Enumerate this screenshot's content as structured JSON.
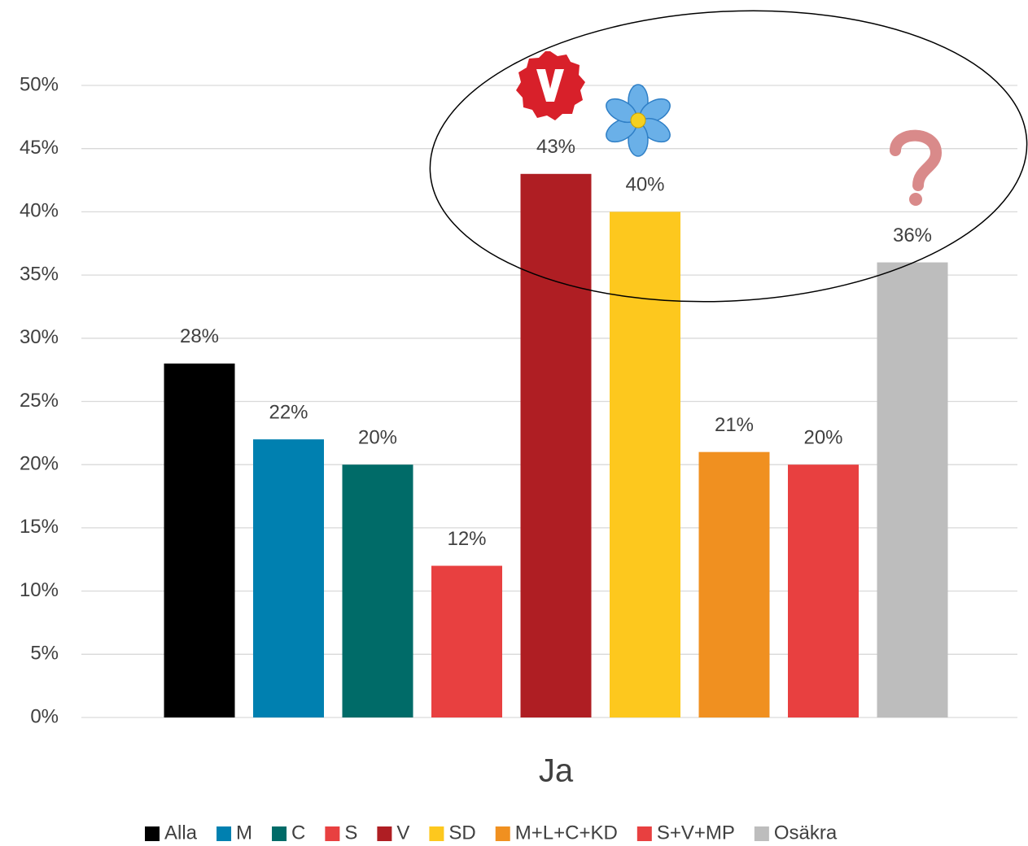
{
  "chart_data": {
    "type": "bar",
    "categories": [
      "Ja"
    ],
    "series": [
      {
        "name": "Alla",
        "color": "#000000",
        "values": [
          28
        ],
        "value_labels": [
          "28%"
        ]
      },
      {
        "name": "M",
        "color": "#0080b0",
        "values": [
          22
        ],
        "value_labels": [
          "22%"
        ]
      },
      {
        "name": "C",
        "color": "#006b68",
        "values": [
          20
        ],
        "value_labels": [
          "20%"
        ]
      },
      {
        "name": "S",
        "color": "#e84040",
        "values": [
          12
        ],
        "value_labels": [
          "12%"
        ]
      },
      {
        "name": "V",
        "color": "#af1e23",
        "values": [
          43
        ],
        "value_labels": [
          "43%"
        ]
      },
      {
        "name": "SD",
        "color": "#fdc81e",
        "values": [
          40
        ],
        "value_labels": [
          "40%"
        ]
      },
      {
        "name": "M+L+C+KD",
        "color": "#f09020",
        "values": [
          21
        ],
        "value_labels": [
          "21%"
        ]
      },
      {
        "name": "S+V+MP",
        "color": "#e84040",
        "values": [
          20
        ],
        "value_labels": [
          "20%"
        ]
      },
      {
        "name": "Osäkra",
        "color": "#bdbdbd",
        "values": [
          36
        ],
        "value_labels": [
          "36%"
        ]
      }
    ],
    "ylim": [
      0,
      50
    ],
    "yticks": [
      {
        "value": 0,
        "label": "0%"
      },
      {
        "value": 5,
        "label": "5%"
      },
      {
        "value": 10,
        "label": "10%"
      },
      {
        "value": 15,
        "label": "15%"
      },
      {
        "value": 20,
        "label": "20%"
      },
      {
        "value": 25,
        "label": "25%"
      },
      {
        "value": 30,
        "label": "30%"
      },
      {
        "value": 35,
        "label": "35%"
      },
      {
        "value": 40,
        "label": "40%"
      },
      {
        "value": 45,
        "label": "45%"
      },
      {
        "value": 50,
        "label": "50%"
      }
    ],
    "grid": true,
    "legend": "bottom"
  }
}
